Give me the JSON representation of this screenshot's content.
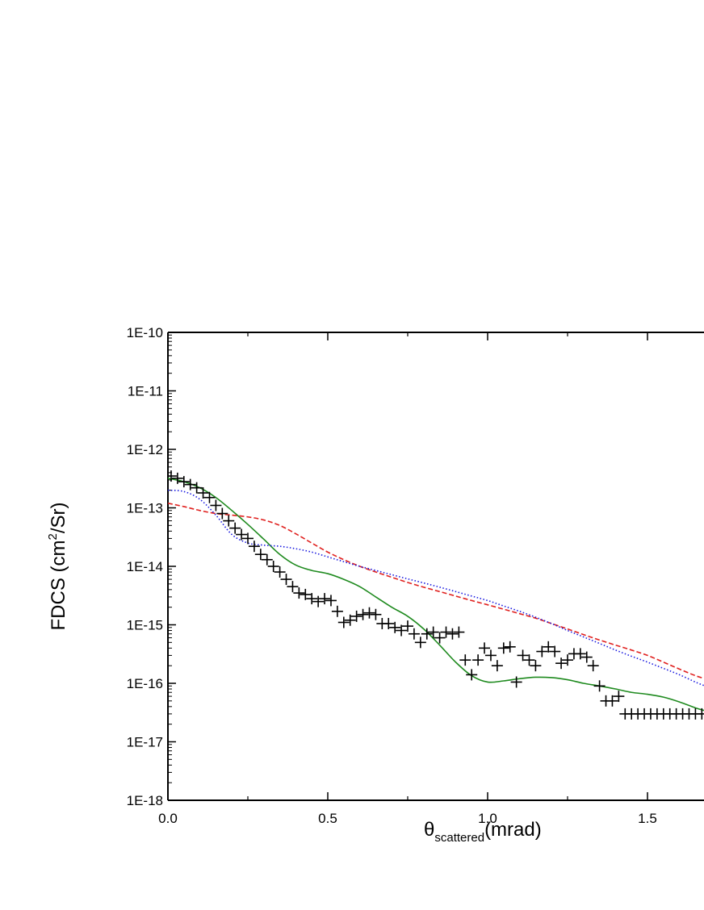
{
  "chart_data": {
    "type": "line",
    "title": "",
    "xlabel": {
      "symbol": "θ",
      "subscript": "scattered",
      "unit": "(mrad)"
    },
    "ylabel": {
      "prefix": "FDCS (cm",
      "superscript": "2",
      "suffix": "/Sr)"
    },
    "xlim": [
      0.0,
      1.68
    ],
    "ylim": [
      1e-18,
      1e-10
    ],
    "yscale": "log",
    "grid": false,
    "x_ticks": [
      {
        "value": 0.0,
        "label": "0.0"
      },
      {
        "value": 0.5,
        "label": "0.5"
      },
      {
        "value": 1.0,
        "label": "1.0"
      },
      {
        "value": 1.5,
        "label": "1.5"
      }
    ],
    "y_ticks": [
      {
        "value": 1e-18,
        "label": "1E-18"
      },
      {
        "value": 1e-17,
        "label": "1E-17"
      },
      {
        "value": 1e-16,
        "label": "1E-16"
      },
      {
        "value": 1e-15,
        "label": "1E-15"
      },
      {
        "value": 1e-14,
        "label": "1E-14"
      },
      {
        "value": 1e-13,
        "label": "1E-13"
      },
      {
        "value": 1e-12,
        "label": "1E-12"
      },
      {
        "value": 1e-11,
        "label": "1E-11"
      },
      {
        "value": 1e-10,
        "label": "1E-10"
      }
    ],
    "series": [
      {
        "style": "markers",
        "marker": "plus",
        "color": "#000000",
        "x": [
          0.01,
          0.03,
          0.05,
          0.07,
          0.09,
          0.11,
          0.13,
          0.15,
          0.17,
          0.19,
          0.21,
          0.23,
          0.25,
          0.27,
          0.29,
          0.31,
          0.33,
          0.35,
          0.37,
          0.39,
          0.41,
          0.43,
          0.45,
          0.47,
          0.49,
          0.51,
          0.53,
          0.55,
          0.57,
          0.59,
          0.61,
          0.63,
          0.65,
          0.67,
          0.69,
          0.71,
          0.73,
          0.75,
          0.77,
          0.79,
          0.81,
          0.83,
          0.85,
          0.87,
          0.89,
          0.91,
          0.93,
          0.95,
          0.97,
          0.99,
          1.01,
          1.03,
          1.05,
          1.07,
          1.09,
          1.11,
          1.13,
          1.15,
          1.17,
          1.19,
          1.21,
          1.23,
          1.25,
          1.27,
          1.29,
          1.31,
          1.33,
          1.35,
          1.37,
          1.39,
          1.41,
          1.43,
          1.45,
          1.47,
          1.49,
          1.51,
          1.53,
          1.55,
          1.57,
          1.59,
          1.61,
          1.63,
          1.65,
          1.67
        ],
        "y": [
          3.5e-13,
          3.2e-13,
          2.8e-13,
          2.5e-13,
          2.2e-13,
          1.8e-13,
          1.5e-13,
          1.1e-13,
          8e-14,
          6e-14,
          4.5e-14,
          3.5e-14,
          3e-14,
          2.2e-14,
          1.6e-14,
          1.3e-14,
          1e-14,
          8e-15,
          6e-15,
          4.5e-15,
          3.5e-15,
          3.3e-15,
          2.8e-15,
          2.5e-15,
          2.8e-15,
          2.6e-15,
          1.7e-15,
          1.1e-15,
          1.2e-15,
          1.4e-15,
          1.5e-15,
          1.6e-15,
          1.5e-15,
          1.05e-15,
          1.05e-15,
          9e-16,
          8e-16,
          9.5e-16,
          7e-16,
          5e-16,
          7e-16,
          7.5e-16,
          6e-16,
          7.5e-16,
          7e-16,
          7.5e-16,
          2.5e-16,
          1.4e-16,
          2.5e-16,
          4e-16,
          3e-16,
          2e-16,
          4e-16,
          4.2e-16,
          1.05e-16,
          3e-16,
          2.5e-16,
          2e-16,
          3.5e-16,
          4.2e-16,
          3.5e-16,
          2.2e-16,
          2.5e-16,
          3.2e-16,
          3.2e-16,
          2.8e-16,
          2e-16,
          9e-17,
          5e-17,
          5e-17,
          6e-17,
          3e-17,
          3e-17,
          3e-17,
          3e-17,
          3e-17,
          3e-17,
          3e-17,
          3e-17,
          3e-17,
          3e-17,
          3e-17,
          3e-17,
          3e-17
        ]
      },
      {
        "style": "solid",
        "color": "#1e8a1e",
        "x": [
          0.0,
          0.05,
          0.1,
          0.15,
          0.2,
          0.25,
          0.3,
          0.35,
          0.4,
          0.45,
          0.5,
          0.55,
          0.6,
          0.65,
          0.7,
          0.75,
          0.8,
          0.85,
          0.9,
          0.95,
          1.0,
          1.05,
          1.1,
          1.15,
          1.2,
          1.25,
          1.3,
          1.35,
          1.4,
          1.45,
          1.5,
          1.55,
          1.6,
          1.65,
          1.68
        ],
        "y": [
          3.2e-13,
          2.8e-13,
          2.2e-13,
          1.5e-13,
          9e-14,
          5.2e-14,
          2.9e-14,
          1.6e-14,
          1.05e-14,
          8.5e-15,
          7.5e-15,
          6e-15,
          4.5e-15,
          3e-15,
          2e-15,
          1.4e-15,
          8.5e-16,
          4.5e-16,
          2.3e-16,
          1.35e-16,
          1.05e-16,
          1.1e-16,
          1.2e-16,
          1.27e-16,
          1.25e-16,
          1.15e-16,
          1e-16,
          9e-17,
          8e-17,
          7e-17,
          6.5e-17,
          5.8e-17,
          4.8e-17,
          3.8e-17,
          3.4e-17
        ]
      },
      {
        "style": "dashed",
        "color": "#e0201e",
        "x": [
          0.0,
          0.05,
          0.1,
          0.15,
          0.2,
          0.25,
          0.3,
          0.35,
          0.4,
          0.45,
          0.5,
          0.55,
          0.6,
          0.65,
          0.7,
          0.75,
          0.8,
          0.85,
          0.9,
          0.95,
          1.0,
          1.05,
          1.1,
          1.15,
          1.2,
          1.25,
          1.3,
          1.35,
          1.4,
          1.45,
          1.5,
          1.55,
          1.6,
          1.65,
          1.68
        ],
        "y": [
          1.2e-13,
          1.05e-13,
          9e-14,
          8e-14,
          7.5e-14,
          7e-14,
          6.2e-14,
          5e-14,
          3.6e-14,
          2.5e-14,
          1.75e-14,
          1.3e-14,
          1e-14,
          8e-15,
          6.5e-15,
          5.3e-15,
          4.4e-15,
          3.7e-15,
          3.1e-15,
          2.6e-15,
          2.2e-15,
          1.85e-15,
          1.55e-15,
          1.3e-15,
          1.05e-15,
          8.5e-16,
          6.8e-16,
          5.5e-16,
          4.5e-16,
          3.7e-16,
          3e-16,
          2.3e-16,
          1.75e-16,
          1.35e-16,
          1.2e-16
        ]
      },
      {
        "style": "dotted",
        "color": "#1a1ae0",
        "x": [
          0.0,
          0.05,
          0.1,
          0.15,
          0.2,
          0.25,
          0.3,
          0.35,
          0.4,
          0.45,
          0.5,
          0.55,
          0.6,
          0.65,
          0.7,
          0.75,
          0.8,
          0.85,
          0.9,
          0.95,
          1.0,
          1.05,
          1.1,
          1.15,
          1.2,
          1.25,
          1.3,
          1.35,
          1.4,
          1.45,
          1.5,
          1.55,
          1.6,
          1.65,
          1.68
        ],
        "y": [
          2e-13,
          1.9e-13,
          1.4e-13,
          7.5e-14,
          3.5e-14,
          2.5e-14,
          2.3e-14,
          2.2e-14,
          2e-14,
          1.75e-14,
          1.45e-14,
          1.2e-14,
          1e-14,
          8.5e-15,
          7.2e-15,
          6.1e-15,
          5.2e-15,
          4.4e-15,
          3.7e-15,
          3.1e-15,
          2.6e-15,
          2.1e-15,
          1.7e-15,
          1.35e-15,
          1.05e-15,
          8e-16,
          6.2e-16,
          4.8e-16,
          3.7e-16,
          2.9e-16,
          2.3e-16,
          1.8e-16,
          1.4e-16,
          1.05e-16,
          9e-17
        ]
      }
    ]
  }
}
